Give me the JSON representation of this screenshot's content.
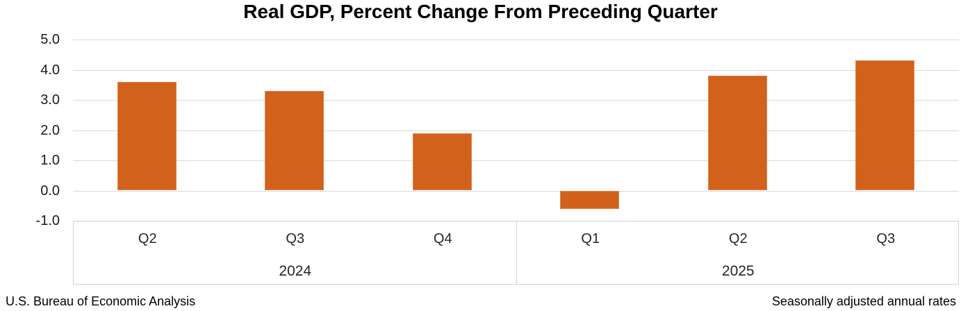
{
  "title": "Real GDP, Percent Change From Preceding Quarter",
  "footer": {
    "left": "U.S. Bureau of Economic Analysis",
    "right": "Seasonally adjusted annual rates"
  },
  "chart_data": {
    "type": "bar",
    "title": "Real GDP, Percent Change From Preceding Quarter",
    "categories": [
      "Q2",
      "Q3",
      "Q4",
      "Q1",
      "Q2",
      "Q3"
    ],
    "groups": [
      {
        "label": "2024",
        "span": 3
      },
      {
        "label": "2025",
        "span": 3
      }
    ],
    "values": [
      3.6,
      3.3,
      1.9,
      -0.6,
      3.8,
      4.3
    ],
    "xlabel": "",
    "ylabel": "",
    "ylim": [
      -1.0,
      5.0
    ],
    "ytick_interval": 1.0,
    "yticks": [
      5.0,
      4.0,
      3.0,
      2.0,
      1.0,
      0.0,
      -1.0
    ],
    "grid": true,
    "legend_position": "none",
    "bar_color": "#d2611c",
    "bar_border_color": "#e0834a",
    "gridline_color": "#d9d9d9",
    "axis_box_border_color": "#d0d0d0",
    "text_color": "#000000"
  }
}
